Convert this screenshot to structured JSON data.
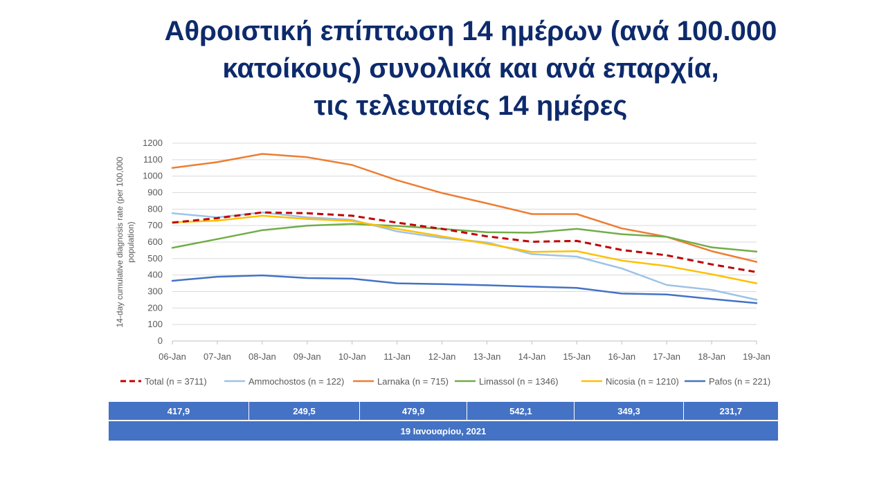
{
  "title": {
    "line1": "Αθροιστική επίπτωση 14 ημέρων (ανά 100.000",
    "line2": "κατοίκους) συνολικά και ανά επαρχία,",
    "line3": "τις τελευταίες 14 ημέρες"
  },
  "chart_data": {
    "type": "line",
    "ylabel": [
      "14-day cumulative diagnosis rate (per 100,000",
      "population)"
    ],
    "xlabel": "",
    "ylim": [
      0,
      1200
    ],
    "yticks": [
      0,
      100,
      200,
      300,
      400,
      500,
      600,
      700,
      800,
      900,
      1000,
      1100,
      1200
    ],
    "grid": true,
    "legend_position": "bottom",
    "categories": [
      "06-Jan",
      "07-Jan",
      "08-Jan",
      "09-Jan",
      "10-Jan",
      "11-Jan",
      "12-Jan",
      "13-Jan",
      "14-Jan",
      "15-Jan",
      "16-Jan",
      "17-Jan",
      "18-Jan",
      "19-Jan"
    ],
    "series": [
      {
        "name": "Total (n = 3711)",
        "color": "#c00000",
        "dashed": true,
        "values": [
          718,
          745,
          780,
          775,
          760,
          718,
          680,
          635,
          602,
          607,
          552,
          520,
          465,
          418
        ]
      },
      {
        "name": "Ammochostos (n = 122)",
        "color": "#9dc3e6",
        "dashed": false,
        "values": [
          775,
          750,
          780,
          750,
          735,
          665,
          625,
          598,
          527,
          512,
          440,
          340,
          310,
          250
        ]
      },
      {
        "name": "Larnaka (n = 715)",
        "color": "#ed7d31",
        "dashed": false,
        "values": [
          1050,
          1085,
          1135,
          1115,
          1068,
          975,
          898,
          835,
          770,
          770,
          683,
          632,
          545,
          480
        ]
      },
      {
        "name": "Limassol (n = 1346)",
        "color": "#70ad47",
        "dashed": false,
        "values": [
          565,
          618,
          672,
          700,
          710,
          698,
          680,
          660,
          657,
          680,
          648,
          632,
          568,
          542
        ]
      },
      {
        "name": "Nicosia (n = 1210)",
        "color": "#ffc000",
        "dashed": false,
        "values": [
          720,
          730,
          760,
          740,
          728,
          680,
          635,
          590,
          540,
          545,
          488,
          455,
          405,
          350
        ]
      },
      {
        "name": "Pafos (n = 221)",
        "color": "#4472c4",
        "dashed": false,
        "values": [
          365,
          390,
          398,
          382,
          378,
          350,
          345,
          338,
          330,
          322,
          288,
          282,
          255,
          230
        ]
      }
    ]
  },
  "table": {
    "values": [
      "417,9",
      "249,5",
      "479,9",
      "542,1",
      "349,3",
      "231,7"
    ],
    "date": "19 Ιανουαρίου, 2021",
    "fill_color": "#4472c4"
  }
}
